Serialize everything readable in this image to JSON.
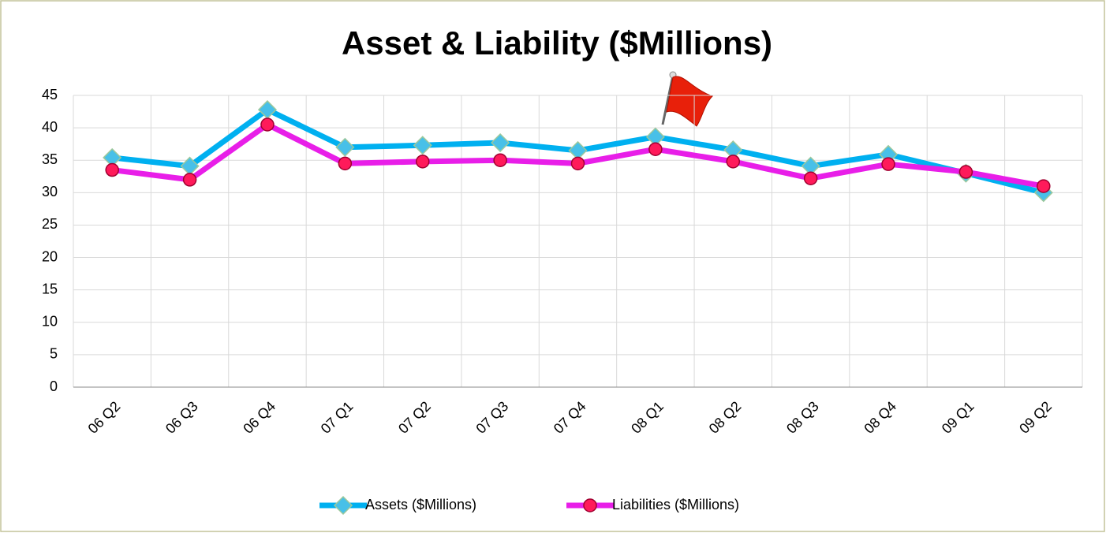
{
  "chart_data": {
    "type": "line",
    "title": "Asset & Liability ($Millions)",
    "categories": [
      "06 Q2",
      "06 Q3",
      "06 Q4",
      "07 Q1",
      "07 Q2",
      "07 Q3",
      "07 Q4",
      "08 Q1",
      "08 Q2",
      "08 Q3",
      "08 Q4",
      "09 Q1",
      "09 Q2"
    ],
    "series": [
      {
        "name": "Assets ($Millions)",
        "color": "#00b0f0",
        "values": [
          35.4,
          34.1,
          42.8,
          37.0,
          37.3,
          37.7,
          36.5,
          38.6,
          36.6,
          34.1,
          35.9,
          33.0,
          30.0
        ]
      },
      {
        "name": "Liabilities ($Millions)",
        "color": "#e81ee8",
        "values": [
          33.5,
          32.0,
          40.5,
          34.5,
          34.8,
          35.0,
          34.5,
          36.7,
          34.8,
          32.2,
          34.4,
          33.2,
          31.0
        ]
      }
    ],
    "ylim": [
      0,
      45
    ],
    "yticks": [
      0,
      5,
      10,
      15,
      20,
      25,
      30,
      35,
      40,
      45
    ],
    "grid": true,
    "legend": "bottom"
  }
}
